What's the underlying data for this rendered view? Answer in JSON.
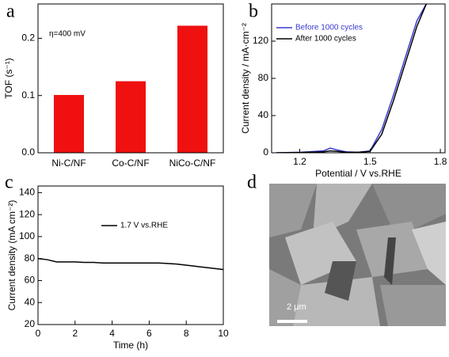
{
  "chart_data": [
    {
      "type": "bar",
      "panel_label": "a",
      "ylabel": "TOF (s⁻¹)",
      "annotation": "η=400 mV",
      "categories": [
        "Ni-C/NF",
        "Co-C/NF",
        "NiCo-C/NF"
      ],
      "values": [
        0.101,
        0.125,
        0.222
      ],
      "color": "#f01010",
      "ylim": [
        0,
        0.26
      ],
      "yticks": [
        {
          "value": 0,
          "label": "0.0"
        },
        0.1,
        0.2
      ]
    },
    {
      "type": "line",
      "panel_label": "b",
      "xlabel": "Potential / V vs.RHE",
      "ylabel": "Current density / mA·cm⁻²",
      "x": [
        1.1,
        1.2,
        1.3,
        1.33,
        1.36,
        1.4,
        1.45,
        1.5,
        1.55,
        1.6,
        1.65,
        1.7,
        1.74
      ],
      "series": [
        {
          "name": "Before 1000 cycles",
          "color": "#3a3ad0",
          "values": [
            0,
            0.5,
            2,
            5,
            3,
            1,
            0.5,
            2,
            25,
            62,
            102,
            142,
            160
          ]
        },
        {
          "name": "After 1000 cycles",
          "color": "#000000",
          "values": [
            0,
            0.3,
            1,
            2,
            1.5,
            0.5,
            0.5,
            1.5,
            20,
            56,
            96,
            136,
            160
          ]
        }
      ],
      "xlim": [
        1.08,
        1.82
      ],
      "xticks": [
        1.2,
        1.5,
        1.8
      ],
      "ylim": [
        0,
        160
      ],
      "yticks": [
        0,
        40,
        80,
        120
      ]
    },
    {
      "type": "line",
      "panel_label": "c",
      "xlabel": "Time (h)",
      "ylabel": "Current density (mA cm⁻²)",
      "x": [
        0,
        0.5,
        1,
        1.5,
        2,
        2.5,
        3,
        3.5,
        4,
        4.5,
        5,
        5.5,
        6,
        6.5,
        7,
        7.5,
        8,
        8.5,
        9,
        9.5,
        10
      ],
      "series": [
        {
          "name": "1.7 V vs.RHE",
          "color": "#000000",
          "values": [
            80,
            79,
            77,
            77,
            77,
            76.5,
            76.5,
            76,
            76,
            76,
            76,
            76,
            76,
            76,
            75.5,
            75,
            74,
            73,
            72,
            71,
            70
          ]
        }
      ],
      "xlim": [
        0,
        10
      ],
      "xticks": [
        0,
        2,
        4,
        6,
        8,
        10
      ],
      "ylim": [
        20,
        146
      ],
      "yticks": [
        20,
        40,
        60,
        80,
        100,
        120,
        140
      ]
    }
  ],
  "image_panel": {
    "label": "d",
    "scale_bar": "2 μm"
  }
}
